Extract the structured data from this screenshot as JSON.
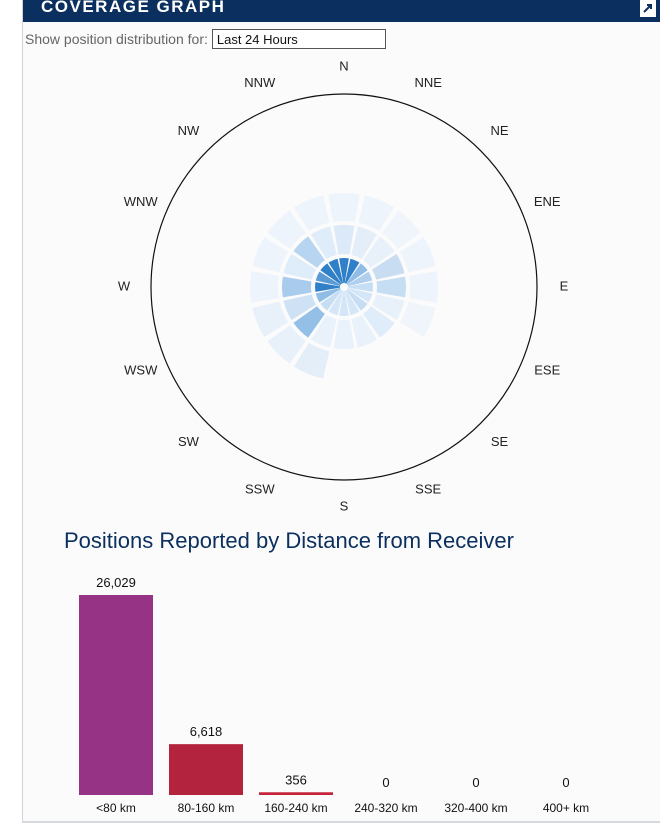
{
  "header": {
    "title": "COVERAGE GRAPH"
  },
  "selector": {
    "label": "Show position distribution for:",
    "value": "Last 24 Hours"
  },
  "polar": {
    "directions": [
      "N",
      "NNE",
      "NE",
      "ENE",
      "E",
      "ESE",
      "SE",
      "SSE",
      "S",
      "SSW",
      "SW",
      "WSW",
      "W",
      "WNW",
      "NW",
      "NNW"
    ],
    "rings": [
      [
        "#2f80c8",
        "#2f80c8",
        "#8fbde6",
        "#aecfee",
        "#c6def4",
        "#d4e6f7",
        "#c6def4",
        "#d4e6f7",
        "#d4e6f7",
        "#d4e6f7",
        "#c6def4",
        "#8fbde6",
        "#2f80c8",
        "#5a9bd5",
        "#2f80c8",
        "#2f80c8"
      ],
      [
        "#dbe9f8",
        "#e3eef9",
        "#e8f1fa",
        "#c8ddf2",
        "#c6def4",
        "#e8f1fa",
        "#dfecf9",
        "#e9f2fb",
        "#e9f2fb",
        "#e9f2fb",
        "#94bfe7",
        "#cfe2f5",
        "#a9cbee",
        "#dfecf9",
        "#b7d4f0",
        "#dfecf9"
      ],
      [
        "#eef4fb",
        "#eef4fb",
        "#f0f5fb",
        "#eef4fb",
        "#eef4fb",
        "#f0f5fb",
        null,
        null,
        null,
        "#e3eef9",
        "#e8f1fa",
        "#e8f1fa",
        "#eef4fb",
        "#eef4fb",
        "#eef4fb",
        "#eef4fb"
      ]
    ]
  },
  "bar_section": {
    "title": "Positions Reported by Distance from Receiver"
  },
  "chart_data": {
    "type": "bar",
    "title": "Positions Reported by Distance from Receiver",
    "categories": [
      "<80 km",
      "80-160 km",
      "160-240 km",
      "240-320 km",
      "320-400 km",
      "400+ km"
    ],
    "values": [
      26029,
      6618,
      356,
      0,
      0,
      0
    ],
    "value_labels": [
      "26,029",
      "6,618",
      "356",
      "0",
      "0",
      "0"
    ],
    "colors": [
      "#963384",
      "#b4233d",
      "#c4253a",
      "#c4253a",
      "#c4253a",
      "#c4253a"
    ],
    "ylim": [
      0,
      26029
    ]
  }
}
